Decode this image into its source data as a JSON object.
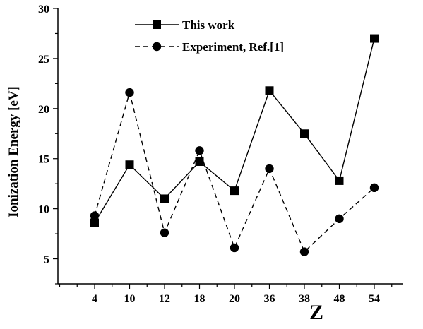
{
  "chart_data": {
    "type": "line",
    "title": "",
    "xlabel": "Z",
    "ylabel": "Ionization Energy [eV]",
    "categories": [
      "4",
      "10",
      "12",
      "18",
      "20",
      "36",
      "38",
      "48",
      "54"
    ],
    "ylim": [
      2.5,
      30
    ],
    "yticks": [
      5,
      10,
      15,
      20,
      25,
      30
    ],
    "grid": false,
    "legend_position": "top",
    "series": [
      {
        "name": "This work",
        "marker": "square",
        "line": "solid",
        "color": "#000000",
        "values": [
          8.6,
          14.4,
          11.0,
          14.7,
          11.8,
          21.8,
          17.5,
          12.8,
          27.0
        ]
      },
      {
        "name": "Experiment, Ref.[1]",
        "marker": "circle",
        "line": "dashed",
        "color": "#000000",
        "values": [
          9.3,
          21.6,
          7.6,
          15.8,
          6.1,
          14.0,
          5.7,
          9.0,
          12.1
        ]
      }
    ]
  }
}
